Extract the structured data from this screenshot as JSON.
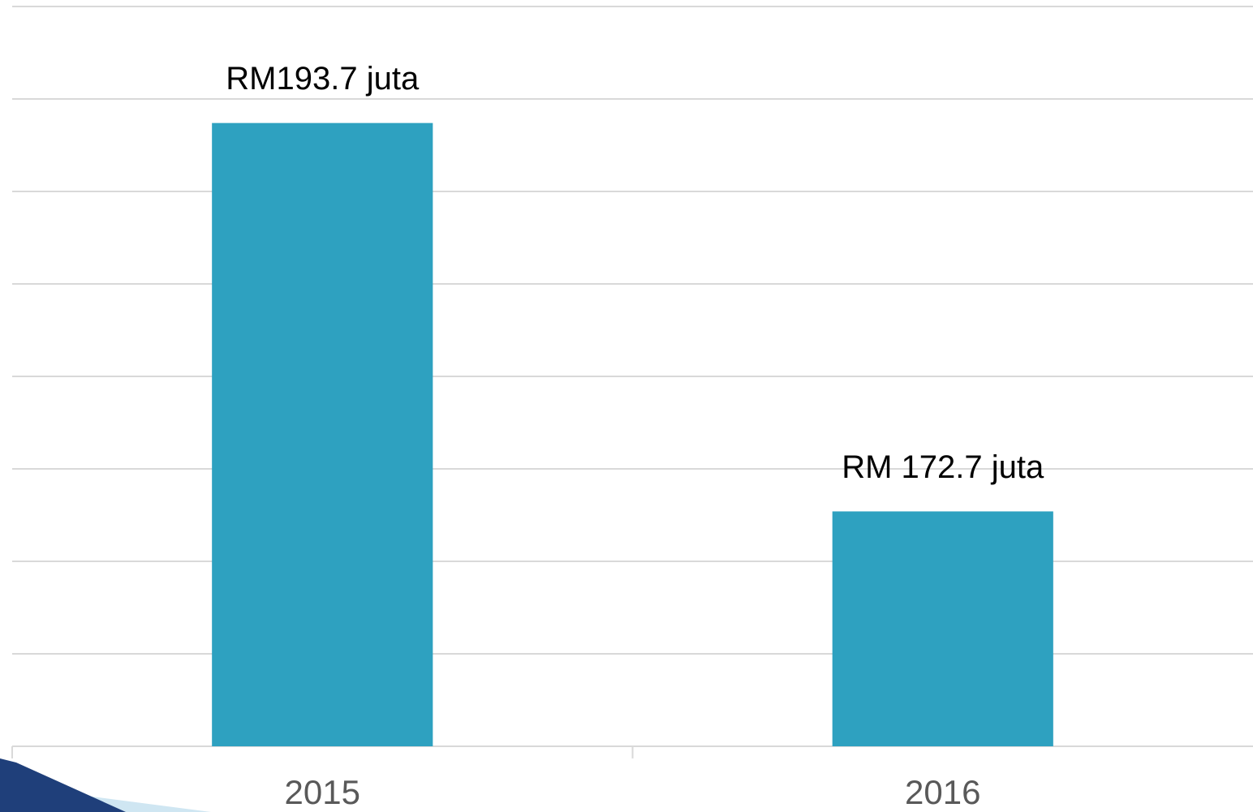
{
  "chart_data": {
    "type": "bar",
    "categories": [
      "2015",
      "2016"
    ],
    "values": [
      193.7,
      172.7
    ],
    "value_labels": [
      "RM193.7 juta",
      "RM 172.7 juta"
    ],
    "color": "#2ea1c0",
    "ylim": [
      160,
      200
    ],
    "yticks": [
      160,
      165,
      170,
      175,
      180,
      185,
      190,
      195,
      200
    ],
    "grid": true
  }
}
